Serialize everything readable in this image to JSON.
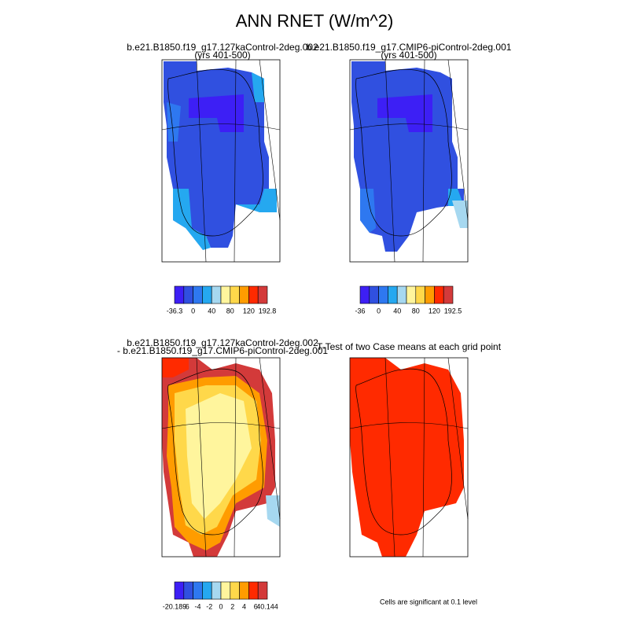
{
  "title": "ANN RNET (W/m^2)",
  "colors": [
    "#3d1ff5",
    "#3050e0",
    "#2e78f0",
    "#25a8f0",
    "#a6d8f0",
    "#fff59d",
    "#ffd84a",
    "#ff9c00",
    "#ff2a00",
    "#d33a3a"
  ],
  "panels": [
    {
      "title": "b.e21.B1850.f19_g17.127kaControl-2deg.002",
      "subtitle": "(yrs 401-500)",
      "colorbar_labels": [
        "-36.3",
        "0",
        "40",
        "80",
        "120",
        "192.8"
      ]
    },
    {
      "title": "b.e21.B1850.f19_g17.CMIP6-piControl-2deg.001",
      "subtitle": "(yrs 401-500)",
      "colorbar_labels": [
        "-36",
        "0",
        "40",
        "80",
        "120",
        "192.5"
      ]
    },
    {
      "title": "b.e21.B1850.f19_g17.127kaControl-2deg.002",
      "subtitle": "- b.e21.B1850.f19_g17.CMIP6-piControl-2deg.001",
      "colorbar_labels": [
        "-20.189",
        "-6",
        "-4",
        "-2",
        "0",
        "2",
        "4",
        "6",
        "40.144"
      ]
    },
    {
      "title": "T-Test of two Case means at each grid point",
      "note": "Cells are significant at 0.1 level"
    }
  ]
}
